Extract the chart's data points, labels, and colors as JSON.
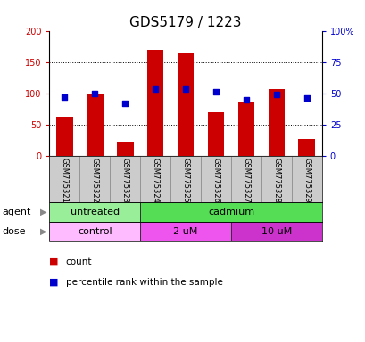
{
  "title": "GDS5179 / 1223",
  "samples": [
    "GSM775321",
    "GSM775322",
    "GSM775323",
    "GSM775324",
    "GSM775325",
    "GSM775326",
    "GSM775327",
    "GSM775328",
    "GSM775329"
  ],
  "counts": [
    62,
    100,
    22,
    170,
    163,
    70,
    85,
    107,
    26
  ],
  "percentiles": [
    47,
    50,
    42,
    53,
    53,
    51,
    45,
    49,
    46
  ],
  "ylim_left": [
    0,
    200
  ],
  "ylim_right": [
    0,
    100
  ],
  "yticks_left": [
    0,
    50,
    100,
    150,
    200
  ],
  "yticks_right": [
    0,
    25,
    50,
    75,
    100
  ],
  "ytick_labels_left": [
    "0",
    "50",
    "100",
    "150",
    "200"
  ],
  "ytick_labels_right": [
    "0",
    "25",
    "50",
    "75",
    "100%"
  ],
  "bar_color": "#cc0000",
  "dot_color": "#0000cc",
  "agent_groups": [
    {
      "label": "untreated",
      "start": 0,
      "end": 3,
      "color": "#99ee99"
    },
    {
      "label": "cadmium",
      "start": 3,
      "end": 9,
      "color": "#55dd55"
    }
  ],
  "dose_groups": [
    {
      "label": "control",
      "start": 0,
      "end": 3,
      "color": "#ffbbff"
    },
    {
      "label": "2 uM",
      "start": 3,
      "end": 6,
      "color": "#ee55ee"
    },
    {
      "label": "10 uM",
      "start": 6,
      "end": 9,
      "color": "#cc33cc"
    }
  ],
  "agent_label": "agent",
  "dose_label": "dose",
  "legend_count": "count",
  "legend_pct": "percentile rank within the sample",
  "title_fontsize": 11,
  "tick_fontsize": 7,
  "annot_fontsize": 8,
  "sample_fontsize": 6,
  "cell_color": "#cccccc",
  "cell_edge": "#888888"
}
